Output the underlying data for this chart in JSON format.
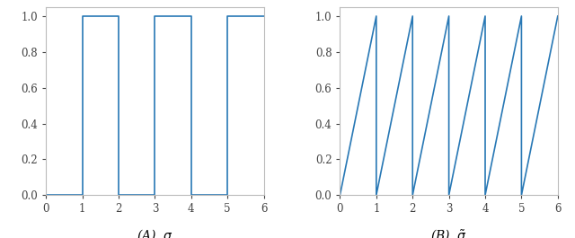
{
  "line_color": "#2878b5",
  "line_width": 1.2,
  "xlim": [
    0,
    6
  ],
  "ylim": [
    0,
    1.05
  ],
  "xticks": [
    0,
    1,
    2,
    3,
    4,
    5,
    6
  ],
  "yticks": [
    0,
    0.2,
    0.4,
    0.6,
    0.8,
    1
  ],
  "label_A": "(A)  $\\sigma$",
  "label_B": "(B)  $\\tilde{\\sigma}$",
  "fig_width": 6.4,
  "fig_height": 2.65,
  "background_color": "#ffffff",
  "spine_color": "#bbbbbb",
  "tick_color": "#444444",
  "tick_label_size": 8.5,
  "label_fontsize": 10
}
